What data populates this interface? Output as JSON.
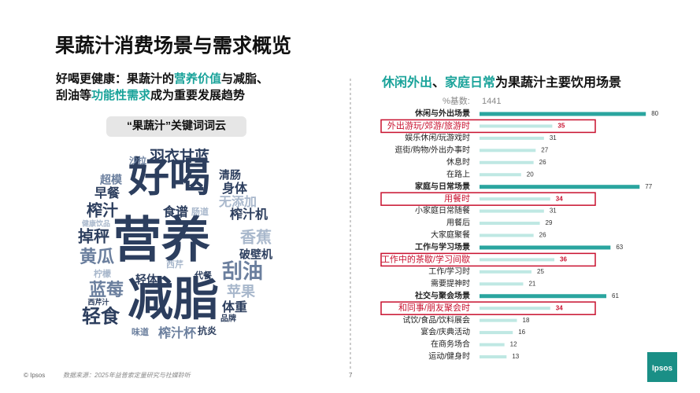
{
  "header": {
    "title": "果蔬汁消费场景与需求概览",
    "headline_parts": [
      "好喝更健康：果蔬汁的",
      "营养价值",
      "与减脂、",
      "刮油等",
      "功能性需求",
      "成为重要发展趋势"
    ]
  },
  "word_cloud": {
    "label": "“果蔬汁”关键词词云",
    "words": [
      "好喝",
      "营养",
      "减脂",
      "羽衣甘蓝",
      "沙拉",
      "清肠",
      "超模",
      "身体",
      "早餐",
      "无添加",
      "榨汁",
      "食谱",
      "肠道",
      "榨汁机",
      "健康饮品",
      "掉秤",
      "香蕉",
      "黄瓜",
      "破壁机",
      "西芹",
      "柠檬",
      "刮油",
      "代餐",
      "蓝莓",
      "轻体",
      "苹果",
      "西芹汁",
      "体重",
      "轻食",
      "品牌",
      "味道",
      "榨汁杯",
      "抗炎"
    ]
  },
  "chart_data": {
    "type": "bar",
    "orientation": "horizontal",
    "title_parts": [
      "休闲外出",
      "、",
      "家庭日常",
      "为果蔬汁主要饮用场景"
    ],
    "base_label": "%基数:",
    "base_value": 1441,
    "categories": [
      "休闲与外出场景",
      "外出游玩/郊游/旅游时",
      "娱乐休闲/玩游戏时",
      "逛街/购物/外出办事时",
      "休息时",
      "在路上",
      "家庭与日常场景",
      "用餐时",
      "小家庭日常随餐",
      "用餐后",
      "大家庭聚餐",
      "工作与学习场景",
      "工作中的茶歇/学习间歇",
      "工作/学习时",
      "需要提神时",
      "社交与聚会场景",
      "和同事/朋友聚会时",
      "试饮/食品/饮料展会",
      "宴会/庆典活动",
      "在商务场合",
      "运动/健身时"
    ],
    "values": [
      80,
      35,
      31,
      27,
      26,
      20,
      77,
      34,
      31,
      29,
      26,
      63,
      36,
      25,
      21,
      61,
      34,
      18,
      16,
      12,
      13
    ],
    "xlim": [
      0,
      100
    ],
    "group_rows": [
      0,
      6,
      11,
      15
    ],
    "highlight_rows": [
      1,
      7,
      12,
      16
    ],
    "group_color": "#2aa59f",
    "item_color": "#bfe8e3",
    "highlight_color": "#c8102e"
  },
  "footer": {
    "copyright": "© Ipsos",
    "source": "数据来源：2025年益普索定量研究与社媒聆听",
    "page": "7",
    "logo": "Ipsos"
  }
}
